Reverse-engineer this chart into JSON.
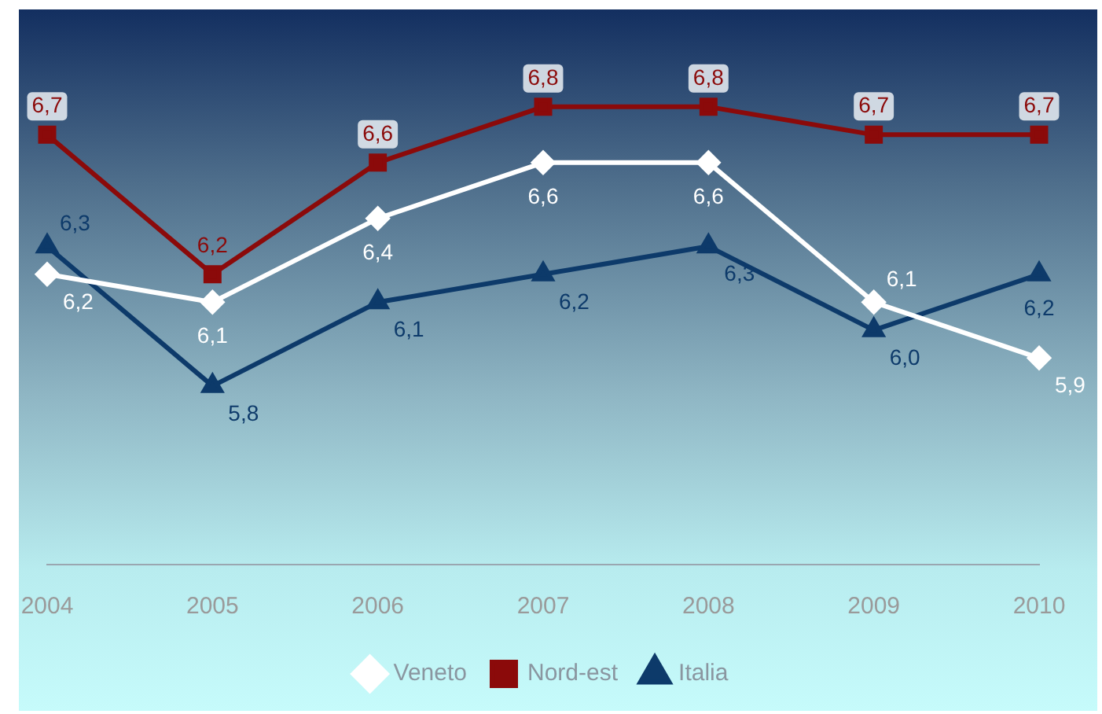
{
  "chart_data": {
    "type": "line",
    "categories": [
      "2004",
      "2005",
      "2006",
      "2007",
      "2008",
      "2009",
      "2010"
    ],
    "series": [
      {
        "name": "Veneto",
        "color": "#ffffff",
        "marker": "diamond",
        "values": [
          6.2,
          6.1,
          6.4,
          6.6,
          6.6,
          6.1,
          5.9
        ],
        "value_labels": [
          "6,2",
          "6,1",
          "6,4",
          "6,6",
          "6,6",
          "6,1",
          "5,9"
        ]
      },
      {
        "name": "Nord-est",
        "color": "#8b0a0a",
        "marker": "square",
        "values": [
          6.7,
          6.2,
          6.6,
          6.8,
          6.8,
          6.7,
          6.7
        ],
        "value_labels": [
          "6,7",
          "6,2",
          "6,6",
          "6,8",
          "6,8",
          "6,7",
          "6,7"
        ]
      },
      {
        "name": "Italia",
        "color": "#0d3a6a",
        "marker": "triangle",
        "values": [
          6.3,
          5.8,
          6.1,
          6.2,
          6.3,
          6.0,
          6.2
        ],
        "value_labels": [
          "6,3",
          "5,8",
          "6,1",
          "6,2",
          "6,3",
          "6,0",
          "6,2"
        ]
      }
    ],
    "grid": false,
    "legend": "bottom",
    "line_style": "solid"
  }
}
